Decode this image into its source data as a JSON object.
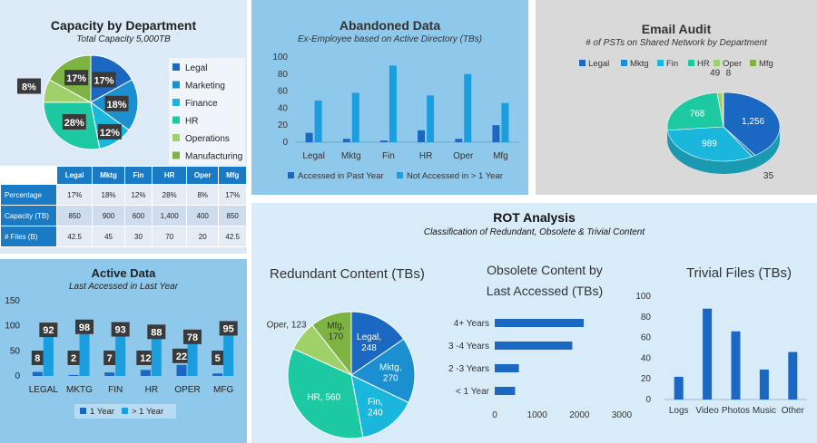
{
  "colors": {
    "legal": "#1b68c2",
    "marketing": "#1b8fd0",
    "finance": "#1bb6dc",
    "hr": "#1dc9a2",
    "operations": "#9fd06a",
    "manufacturing": "#7cb342",
    "bar_dark": "#1b68c2",
    "bar_light": "#1b9ee0"
  },
  "capacity": {
    "title": "Capacity by Department",
    "subtitle": "Total Capacity 5,000TB",
    "table": {
      "headers": [
        "Legal",
        "Mktg",
        "Fin",
        "HR",
        "Oper",
        "Mfg"
      ],
      "rows": [
        {
          "label": "Percentage",
          "values": [
            "17%",
            "18%",
            "12%",
            "28%",
            "8%",
            "17%"
          ]
        },
        {
          "label": "Capacity (TB)",
          "values": [
            "850",
            "900",
            "600",
            "1,400",
            "400",
            "850"
          ]
        },
        {
          "label": "# Files (B)",
          "values": [
            "42.5",
            "45",
            "30",
            "70",
            "20",
            "42.5"
          ]
        }
      ]
    }
  },
  "abandoned": {
    "title": "Abandoned Data",
    "subtitle": "Ex-Employee based on Active Directory (TBs)"
  },
  "email": {
    "title": "Email Audit",
    "subtitle": "# of PSTs on Shared Network by Department"
  },
  "active": {
    "title": "Active Data",
    "subtitle": "Last Accessed in Last Year"
  },
  "rot": {
    "title": "ROT Analysis",
    "subtitle": "Classification of Redundant, Obsolete & Trivial Content",
    "redundant_title": "Redundant Content (TBs)",
    "obsolete_title_1": "Obsolete Content by",
    "obsolete_title_2": "Last Accessed (TBs)",
    "trivial_title": "Trivial Files (TBs)"
  },
  "chart_data": [
    {
      "id": "capacity_pie",
      "type": "pie",
      "title": "Capacity by Department",
      "labels": [
        "Legal",
        "Marketing",
        "Finance",
        "HR",
        "Operations",
        "Manufacturing"
      ],
      "values": [
        17,
        18,
        12,
        28,
        8,
        17
      ],
      "data_labels": [
        "17%",
        "18%",
        "12%",
        "28%",
        "8%",
        "17%"
      ],
      "legend": "right"
    },
    {
      "id": "abandoned_bars",
      "type": "bar",
      "categories": [
        "Legal",
        "Mktg",
        "Fin",
        "HR",
        "Oper",
        "Mfg"
      ],
      "series": [
        {
          "name": "Accessed in Past Year",
          "values": [
            11,
            4,
            2,
            14,
            4,
            20
          ]
        },
        {
          "name": "Not Accessed in > 1 Year",
          "values": [
            49,
            58,
            90,
            55,
            80,
            46
          ]
        }
      ],
      "ylim": [
        0,
        100
      ],
      "yticks": [
        "0",
        "20",
        "40",
        "60",
        "80",
        "100"
      ],
      "legend": "bottom"
    },
    {
      "id": "email_pie",
      "type": "pie",
      "labels": [
        "Legal",
        "Mktg",
        "Fin",
        "HR",
        "Oper",
        "Mfg"
      ],
      "values": [
        1256,
        35,
        989,
        768,
        49,
        8
      ],
      "data_labels": [
        "1,256",
        "35",
        "989",
        "768",
        "49",
        "8"
      ],
      "legend": "top"
    },
    {
      "id": "active_bars",
      "type": "bar",
      "categories": [
        "LEGAL",
        "MKTG",
        "FIN",
        "HR",
        "OPER",
        "MFG"
      ],
      "series": [
        {
          "name": "1 Year",
          "values": [
            8,
            2,
            7,
            12,
            22,
            5
          ]
        },
        {
          "name": "> 1 Year",
          "values": [
            92,
            98,
            93,
            88,
            78,
            95
          ]
        }
      ],
      "ylim": [
        0,
        150
      ],
      "yticks": [
        "0",
        "50",
        "100",
        "150"
      ],
      "legend": "bottom"
    },
    {
      "id": "redundant_pie",
      "type": "pie",
      "title": "Redundant Content (TBs)",
      "labels": [
        "Legal",
        "Mktg",
        "Fin",
        "HR",
        "Oper",
        "Mfg"
      ],
      "values": [
        248,
        270,
        240,
        560,
        123,
        170
      ],
      "data_labels": [
        "Legal, 248",
        "Mktg, 270",
        "Fin, 240",
        "HR, 560",
        "Oper, 123",
        "Mfg, 170"
      ]
    },
    {
      "id": "obsolete_bars",
      "type": "bar",
      "title": "Obsolete Content by Last Accessed (TBs)",
      "categories": [
        "4+ Years",
        "3 -4 Years",
        "2 -3 Years",
        "< 1 Year"
      ],
      "values": [
        2100,
        1830,
        570,
        480
      ],
      "xlim": [
        0,
        3000
      ],
      "xticks": [
        "0",
        "1000",
        "2000",
        "3000"
      ]
    },
    {
      "id": "trivial_bars",
      "type": "bar",
      "title": "Trivial Files (TBs)",
      "categories": [
        "Logs",
        "Video",
        "Photos",
        "Music",
        "Other"
      ],
      "values": [
        22,
        88,
        66,
        29,
        46
      ],
      "ylim": [
        0,
        100
      ],
      "yticks": [
        "0",
        "20",
        "40",
        "60",
        "80",
        "100"
      ]
    }
  ]
}
